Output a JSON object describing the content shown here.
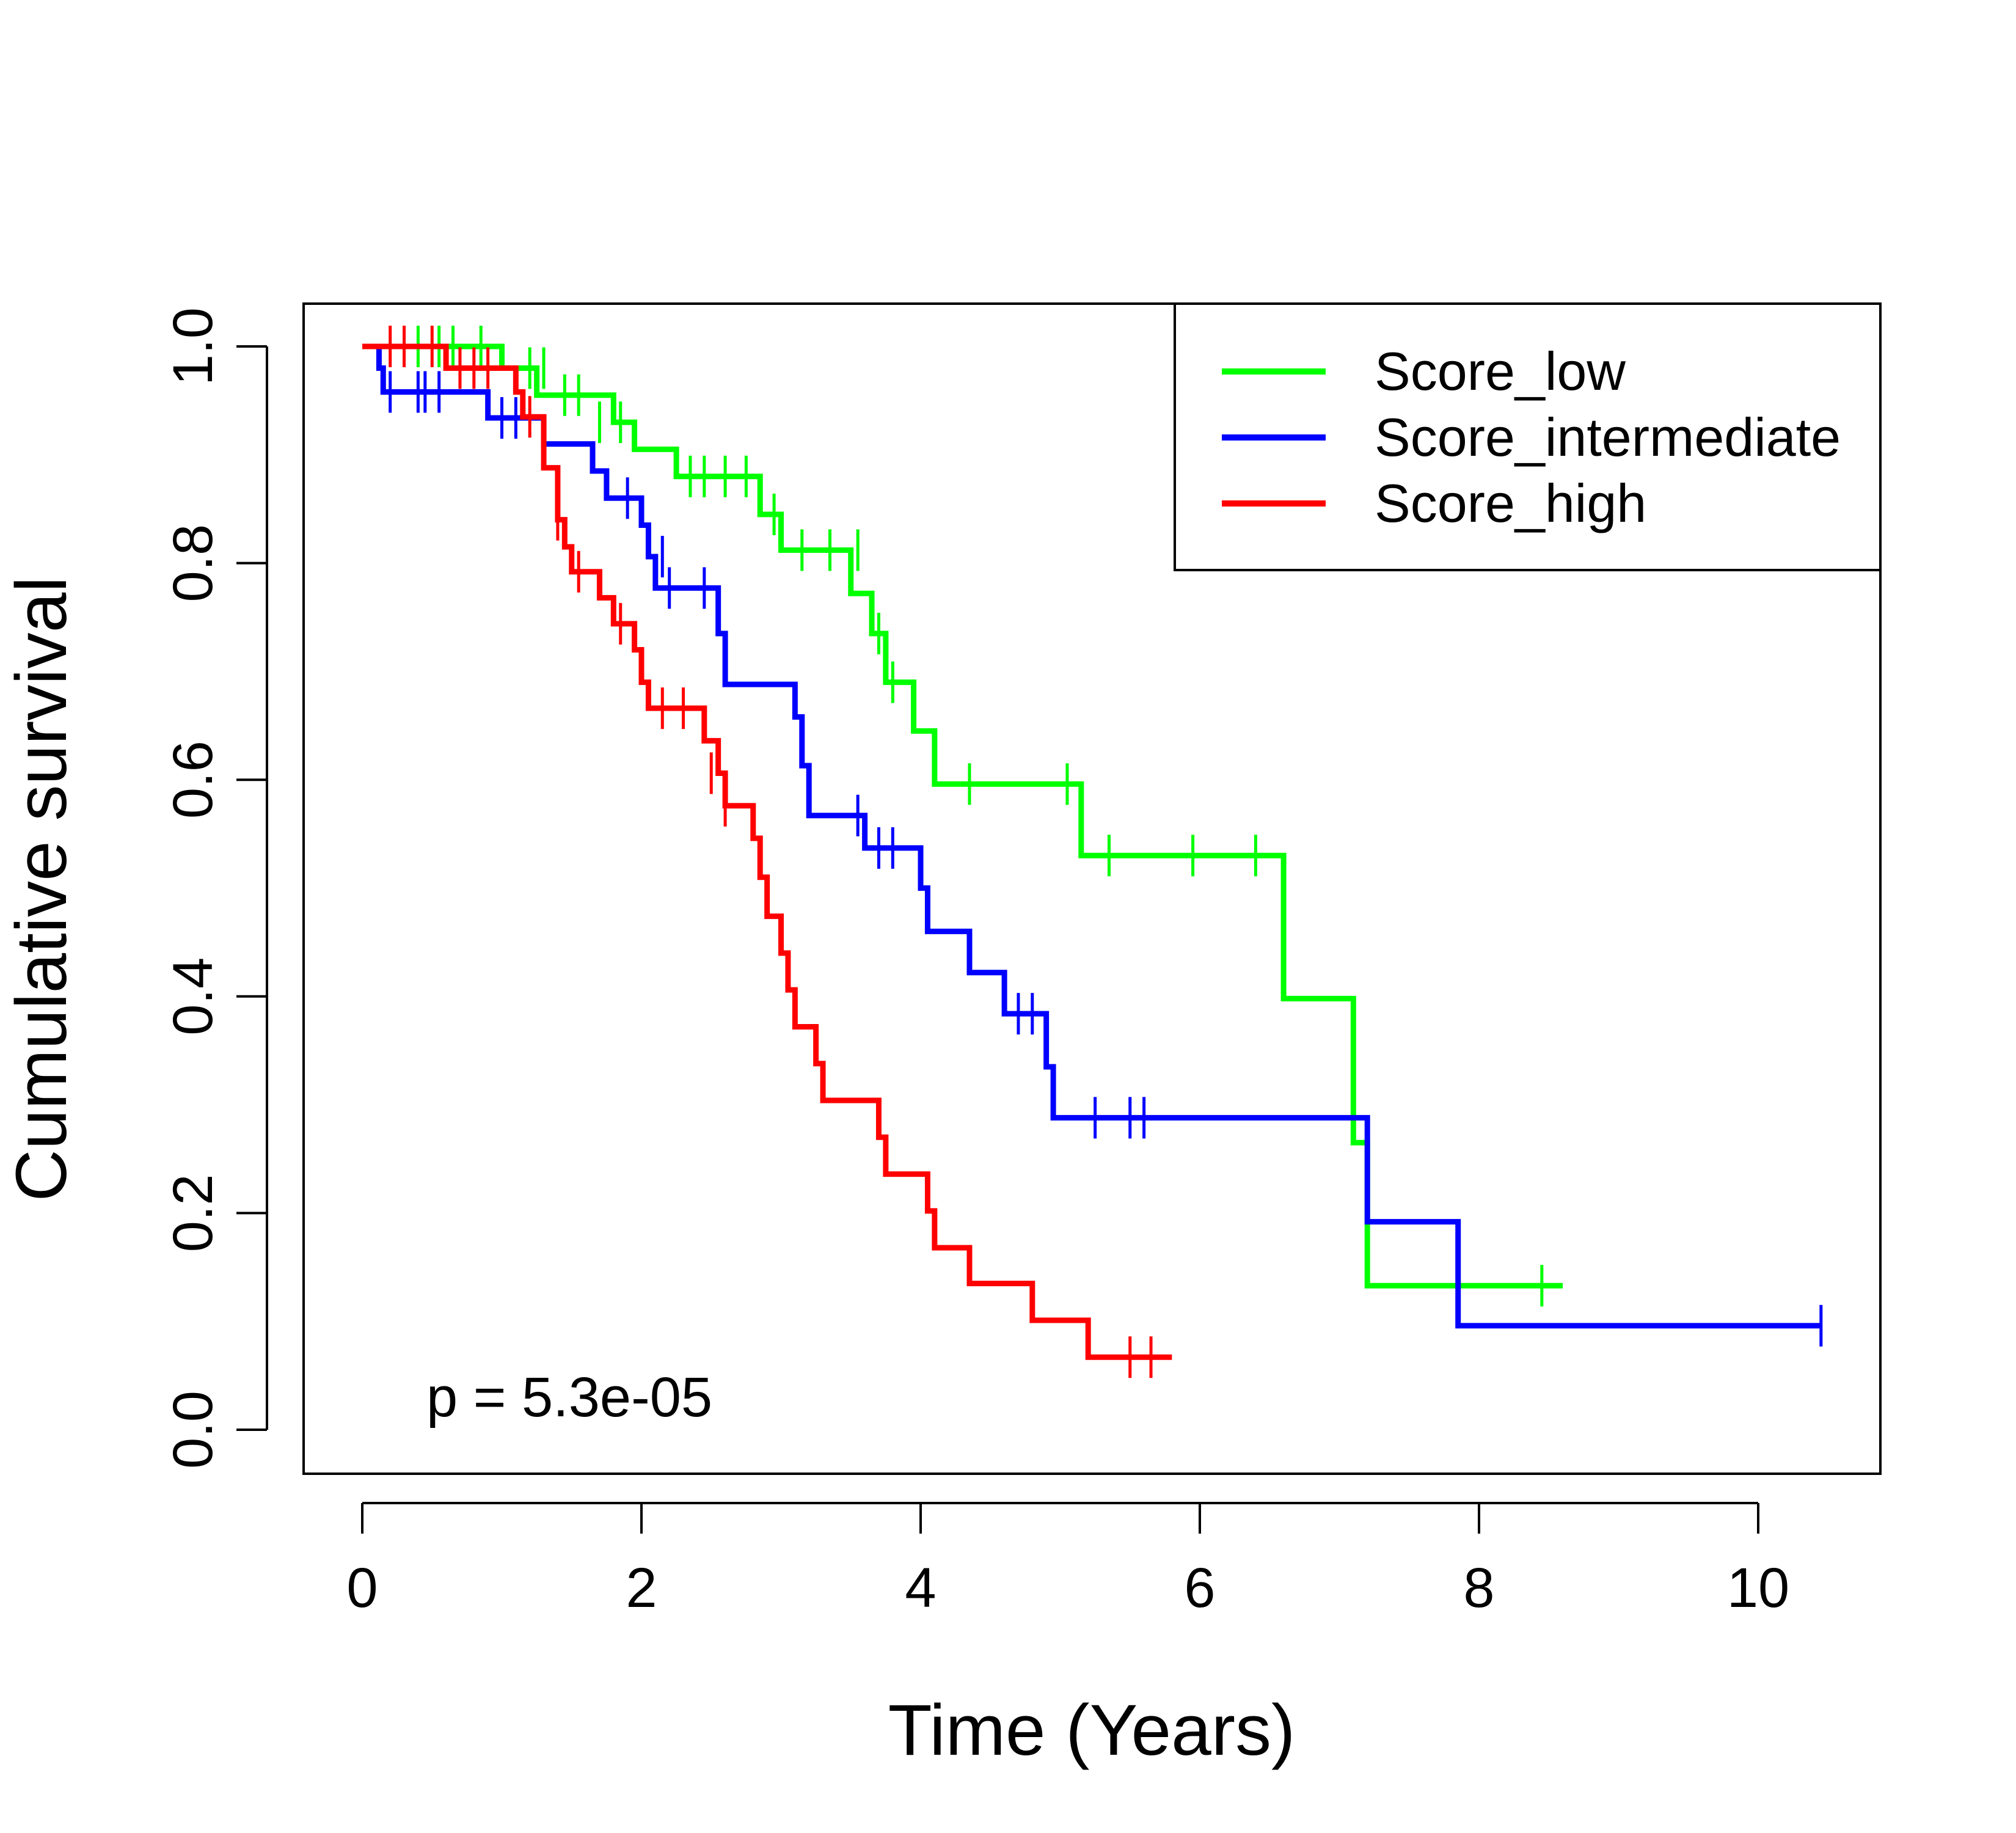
{
  "chart_data": {
    "type": "line",
    "step": true,
    "title": "",
    "xlabel": "Time (Years)",
    "ylabel": "Cumulative survival",
    "xlim": [
      0,
      10.5
    ],
    "ylim": [
      0,
      1
    ],
    "xticks": [
      0,
      2,
      4,
      6,
      8,
      10
    ],
    "xtick_labels": [
      "0",
      "2",
      "4",
      "6",
      "8",
      "10"
    ],
    "yticks": [
      0,
      0.2,
      0.4,
      0.6,
      0.8,
      1.0
    ],
    "ytick_labels": [
      "0.0",
      "0.2",
      "0.4",
      "0.6",
      "0.8",
      "1.0"
    ],
    "grid": false,
    "legend_position": "top-right",
    "annotation": "p = 5.3e-05",
    "series": [
      {
        "name": "Score_low",
        "color": "#00ff00",
        "steps": [
          [
            0.0,
            1.0
          ],
          [
            1.0,
            0.98
          ],
          [
            1.25,
            0.955
          ],
          [
            1.8,
            0.93
          ],
          [
            1.95,
            0.905
          ],
          [
            2.25,
            0.88
          ],
          [
            2.85,
            0.845
          ],
          [
            3.0,
            0.812
          ],
          [
            3.5,
            0.772
          ],
          [
            3.65,
            0.735
          ],
          [
            3.75,
            0.69
          ],
          [
            3.95,
            0.645
          ],
          [
            4.1,
            0.596
          ],
          [
            5.15,
            0.53
          ],
          [
            6.6,
            0.398
          ],
          [
            7.1,
            0.265
          ],
          [
            7.2,
            0.133
          ],
          [
            8.6,
            0.133
          ]
        ],
        "censored": [
          [
            0.4,
            1.0
          ],
          [
            0.55,
            1.0
          ],
          [
            0.65,
            1.0
          ],
          [
            0.85,
            1.0
          ],
          [
            1.2,
            0.98
          ],
          [
            1.3,
            0.98
          ],
          [
            1.45,
            0.955
          ],
          [
            1.55,
            0.955
          ],
          [
            1.7,
            0.93
          ],
          [
            1.85,
            0.93
          ],
          [
            2.35,
            0.88
          ],
          [
            2.45,
            0.88
          ],
          [
            2.6,
            0.88
          ],
          [
            2.75,
            0.88
          ],
          [
            2.95,
            0.845
          ],
          [
            3.15,
            0.812
          ],
          [
            3.35,
            0.812
          ],
          [
            3.55,
            0.812
          ],
          [
            3.7,
            0.735
          ],
          [
            3.8,
            0.69
          ],
          [
            4.35,
            0.596
          ],
          [
            5.05,
            0.596
          ],
          [
            5.35,
            0.53
          ],
          [
            5.95,
            0.53
          ],
          [
            6.4,
            0.53
          ],
          [
            8.45,
            0.133
          ]
        ]
      },
      {
        "name": "Score_intermediate",
        "color": "#0000ff",
        "steps": [
          [
            0.0,
            1.0
          ],
          [
            0.12,
            0.98
          ],
          [
            0.15,
            0.958
          ],
          [
            0.9,
            0.934
          ],
          [
            1.3,
            0.91
          ],
          [
            1.65,
            0.885
          ],
          [
            1.75,
            0.86
          ],
          [
            2.0,
            0.835
          ],
          [
            2.05,
            0.806
          ],
          [
            2.1,
            0.777
          ],
          [
            2.55,
            0.735
          ],
          [
            2.6,
            0.688
          ],
          [
            3.1,
            0.658
          ],
          [
            3.15,
            0.613
          ],
          [
            3.2,
            0.567
          ],
          [
            3.6,
            0.537
          ],
          [
            4.0,
            0.5
          ],
          [
            4.05,
            0.46
          ],
          [
            4.35,
            0.422
          ],
          [
            4.6,
            0.384
          ],
          [
            4.9,
            0.335
          ],
          [
            4.95,
            0.288
          ],
          [
            7.2,
            0.192
          ],
          [
            7.85,
            0.096
          ],
          [
            10.45,
            0.096
          ]
        ],
        "censored": [
          [
            0.2,
            0.958
          ],
          [
            0.4,
            0.958
          ],
          [
            0.45,
            0.958
          ],
          [
            0.55,
            0.958
          ],
          [
            1.0,
            0.934
          ],
          [
            1.1,
            0.934
          ],
          [
            1.9,
            0.86
          ],
          [
            2.15,
            0.806
          ],
          [
            2.2,
            0.777
          ],
          [
            2.45,
            0.777
          ],
          [
            3.55,
            0.567
          ],
          [
            3.7,
            0.537
          ],
          [
            3.8,
            0.537
          ],
          [
            4.7,
            0.384
          ],
          [
            4.8,
            0.384
          ],
          [
            5.25,
            0.288
          ],
          [
            5.5,
            0.288
          ],
          [
            5.6,
            0.288
          ],
          [
            10.45,
            0.096
          ]
        ]
      },
      {
        "name": "Score_high",
        "color": "#ff0000",
        "steps": [
          [
            0.0,
            1.0
          ],
          [
            0.6,
            0.98
          ],
          [
            1.1,
            0.958
          ],
          [
            1.15,
            0.935
          ],
          [
            1.3,
            0.888
          ],
          [
            1.4,
            0.84
          ],
          [
            1.45,
            0.815
          ],
          [
            1.5,
            0.792
          ],
          [
            1.7,
            0.768
          ],
          [
            1.8,
            0.744
          ],
          [
            1.95,
            0.72
          ],
          [
            2.0,
            0.69
          ],
          [
            2.05,
            0.666
          ],
          [
            2.45,
            0.636
          ],
          [
            2.55,
            0.606
          ],
          [
            2.6,
            0.576
          ],
          [
            2.8,
            0.546
          ],
          [
            2.85,
            0.51
          ],
          [
            2.9,
            0.474
          ],
          [
            3.0,
            0.44
          ],
          [
            3.05,
            0.406
          ],
          [
            3.1,
            0.372
          ],
          [
            3.25,
            0.338
          ],
          [
            3.3,
            0.304
          ],
          [
            3.7,
            0.27
          ],
          [
            3.75,
            0.236
          ],
          [
            4.05,
            0.202
          ],
          [
            4.1,
            0.168
          ],
          [
            4.35,
            0.135
          ],
          [
            4.8,
            0.101
          ],
          [
            5.2,
            0.067
          ],
          [
            5.8,
            0.067
          ]
        ],
        "censored": [
          [
            0.2,
            1.0
          ],
          [
            0.3,
            1.0
          ],
          [
            0.5,
            1.0
          ],
          [
            0.7,
            0.98
          ],
          [
            0.8,
            0.98
          ],
          [
            0.9,
            0.98
          ],
          [
            1.2,
            0.935
          ],
          [
            1.4,
            0.84
          ],
          [
            1.55,
            0.792
          ],
          [
            1.85,
            0.744
          ],
          [
            2.15,
            0.666
          ],
          [
            2.3,
            0.666
          ],
          [
            2.5,
            0.606
          ],
          [
            2.6,
            0.576
          ],
          [
            5.5,
            0.067
          ],
          [
            5.65,
            0.067
          ]
        ]
      }
    ]
  }
}
